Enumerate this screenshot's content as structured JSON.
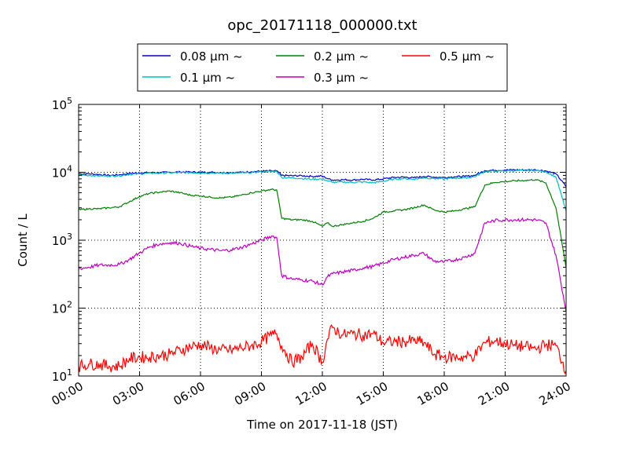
{
  "chart_data": {
    "type": "line",
    "title": "opc_20171118_000000.txt",
    "xlabel": "Time on 2017-11-18 (JST)",
    "ylabel": "Count / L",
    "yscale": "log",
    "grid": true,
    "legend_position": "top",
    "x_tick_labels": [
      "00:00",
      "03:00",
      "06:00",
      "09:00",
      "12:00",
      "15:00",
      "18:00",
      "21:00",
      "24:00"
    ],
    "y_tick_labels": [
      {
        "base": "10",
        "exp": "1"
      },
      {
        "base": "10",
        "exp": "2"
      },
      {
        "base": "10",
        "exp": "3"
      },
      {
        "base": "10",
        "exp": "4"
      },
      {
        "base": "10",
        "exp": "5"
      }
    ],
    "ylim": [
      10,
      100000
    ],
    "xlim": [
      "00:00",
      "24:00"
    ],
    "x": [
      "00:00",
      "00:30",
      "01:00",
      "01:30",
      "02:00",
      "02:30",
      "03:00",
      "03:30",
      "04:00",
      "04:30",
      "05:00",
      "05:30",
      "06:00",
      "06:30",
      "07:00",
      "07:30",
      "08:00",
      "08:30",
      "09:00",
      "09:30",
      "09:45",
      "10:00",
      "10:30",
      "11:00",
      "11:30",
      "12:00",
      "12:15",
      "12:30",
      "13:00",
      "13:30",
      "14:00",
      "14:30",
      "15:00",
      "15:30",
      "16:00",
      "16:30",
      "17:00",
      "17:30",
      "18:00",
      "18:30",
      "19:00",
      "19:30",
      "20:00",
      "20:30",
      "21:00",
      "21:30",
      "22:00",
      "22:30",
      "23:00",
      "23:30",
      "24:00"
    ],
    "series": [
      {
        "name": "0.08 μm ~",
        "color": "#0000cc",
        "values": [
          9500,
          9500,
          9300,
          9000,
          9200,
          9600,
          9800,
          9900,
          9900,
          10000,
          10100,
          10100,
          10000,
          10000,
          9900,
          9900,
          10000,
          10200,
          10400,
          10500,
          10500,
          9000,
          8900,
          8900,
          8700,
          8800,
          8100,
          7700,
          7800,
          7700,
          7900,
          7700,
          8000,
          8400,
          8500,
          8300,
          8700,
          8500,
          8400,
          8600,
          8700,
          9000,
          10600,
          10700,
          10800,
          10900,
          10800,
          10900,
          10500,
          9500,
          6200
        ]
      },
      {
        "name": "0.1 μm ~",
        "color": "#00bfbf",
        "values": [
          9100,
          9000,
          8900,
          8800,
          8900,
          9300,
          9500,
          9700,
          9700,
          9800,
          9900,
          9900,
          9800,
          9800,
          9700,
          9700,
          9800,
          9900,
          10200,
          10300,
          10300,
          8400,
          8300,
          8100,
          7900,
          8000,
          7500,
          7100,
          7200,
          7100,
          7200,
          7000,
          7400,
          7900,
          8100,
          7900,
          8300,
          8100,
          8000,
          8200,
          8300,
          8600,
          10300,
          10400,
          10500,
          10600,
          10600,
          10700,
          10200,
          8500,
          2700
        ]
      },
      {
        "name": "0.2 μm ~",
        "color": "#008000",
        "values": [
          2800,
          2900,
          2900,
          3000,
          3100,
          3700,
          4400,
          4900,
          5100,
          5300,
          5000,
          4600,
          4500,
          4300,
          4200,
          4300,
          4600,
          5000,
          5300,
          5600,
          5500,
          2100,
          2000,
          2000,
          1900,
          1600,
          1800,
          1600,
          1700,
          1800,
          1900,
          2100,
          2600,
          2700,
          2800,
          3000,
          3300,
          2800,
          2600,
          2700,
          2900,
          3100,
          6500,
          7100,
          7300,
          7500,
          7600,
          7800,
          7000,
          3000,
          400
        ]
      },
      {
        "name": "0.3 μm ~",
        "color": "#bf00bf",
        "values": [
          380,
          400,
          430,
          430,
          440,
          520,
          650,
          800,
          880,
          920,
          900,
          820,
          760,
          730,
          700,
          720,
          780,
          880,
          1000,
          1150,
          1100,
          300,
          270,
          260,
          250,
          220,
          290,
          320,
          340,
          360,
          390,
          410,
          460,
          520,
          560,
          600,
          640,
          490,
          480,
          510,
          560,
          640,
          1800,
          1950,
          2000,
          2000,
          2000,
          2000,
          1800,
          600,
          90
        ]
      },
      {
        "name": "0.5 μm ~",
        "color": "#ff0000",
        "values": [
          14,
          15,
          15,
          14,
          14,
          18,
          19,
          19,
          20,
          21,
          24,
          27,
          29,
          26,
          24,
          24,
          26,
          28,
          32,
          40,
          42,
          28,
          16,
          19,
          30,
          16,
          35,
          52,
          40,
          42,
          40,
          42,
          31,
          32,
          32,
          33,
          31,
          21,
          19,
          19,
          19,
          20,
          31,
          33,
          30,
          28,
          27,
          25,
          29,
          28,
          12
        ]
      }
    ]
  }
}
